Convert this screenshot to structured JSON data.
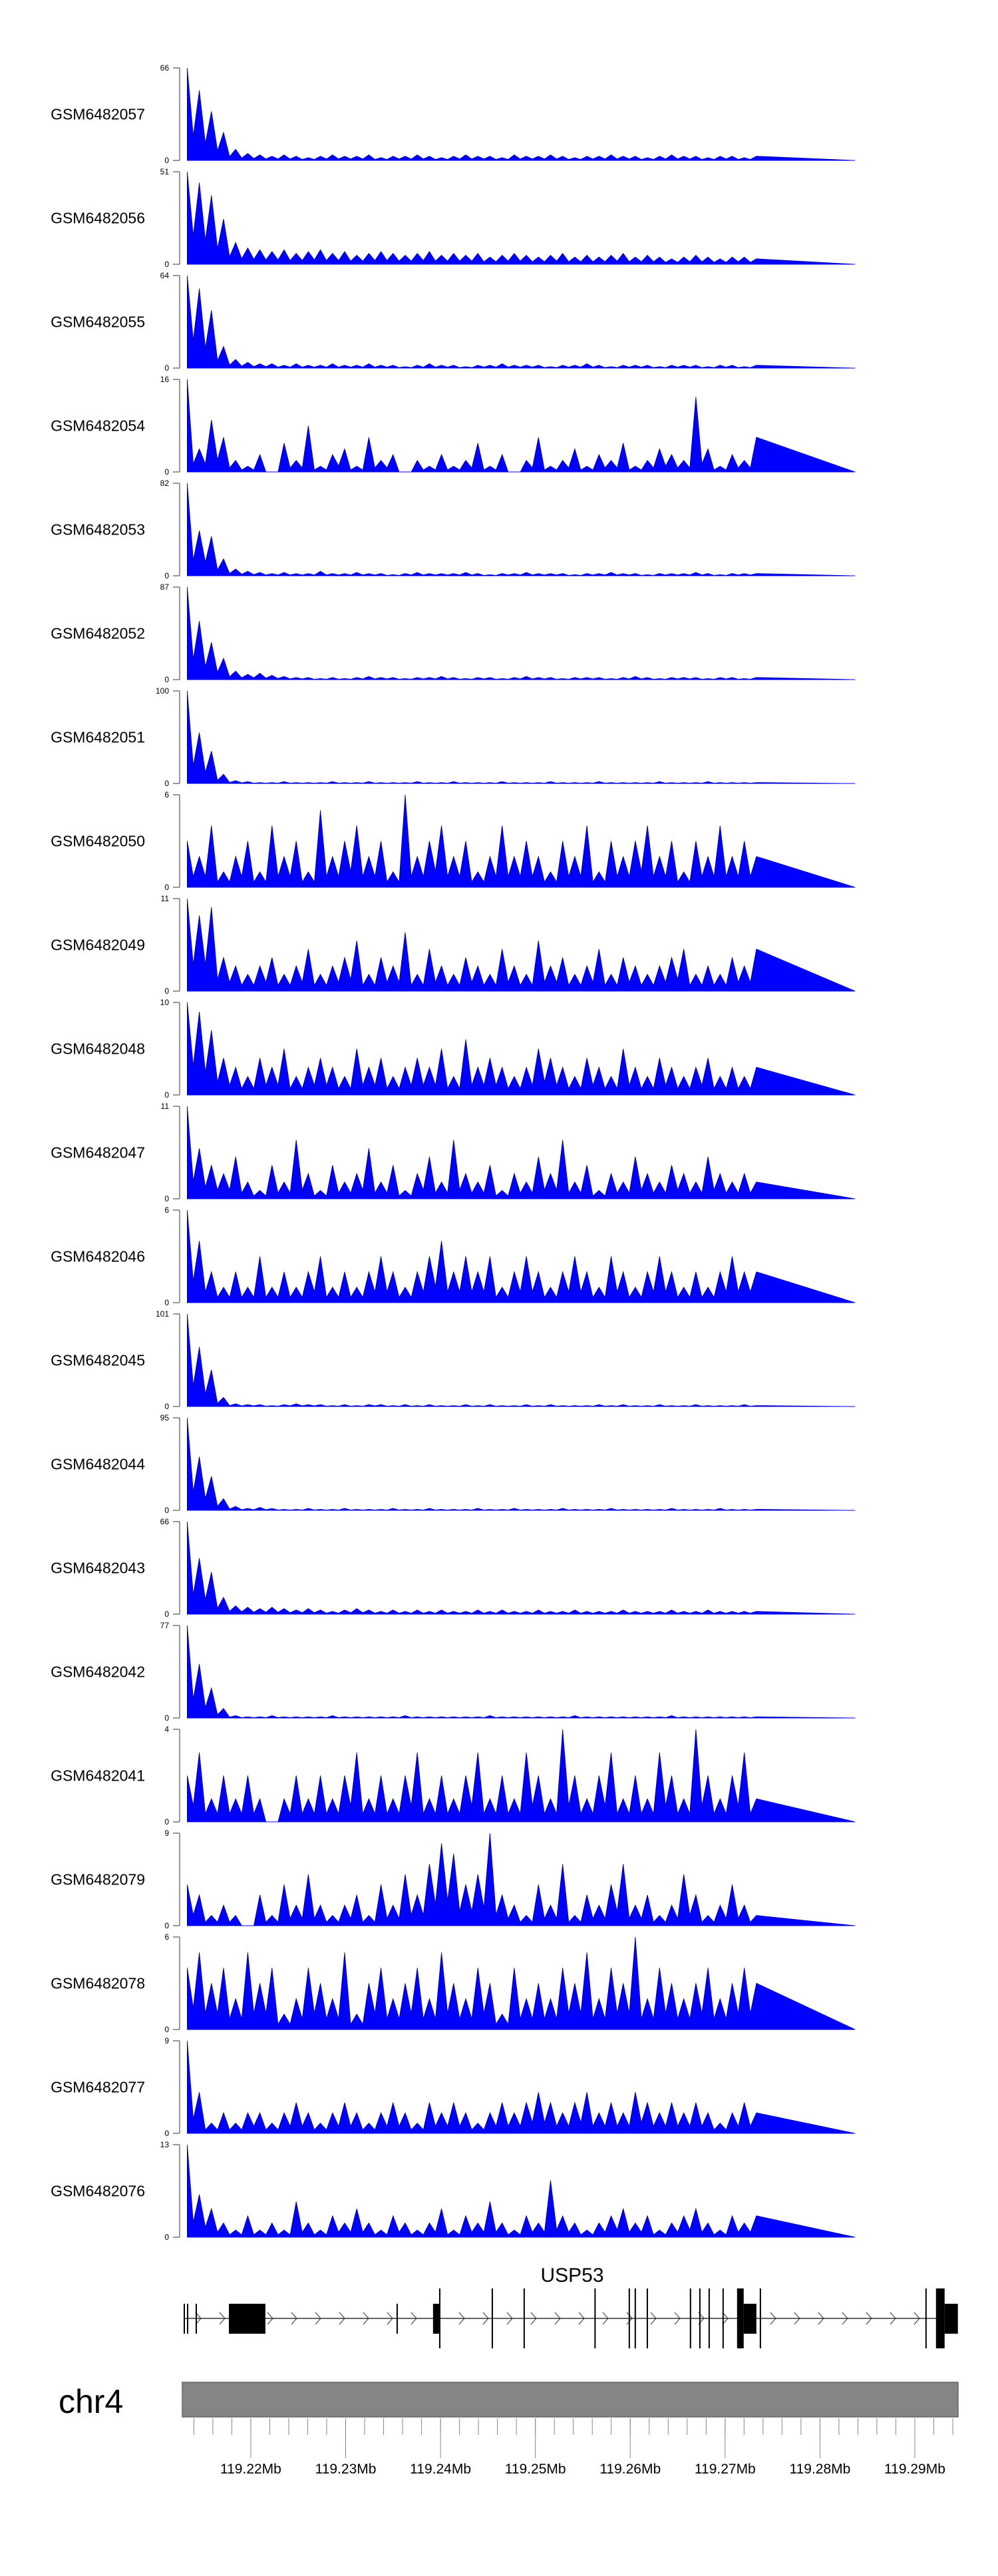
{
  "chart_data": {
    "type": "area",
    "title": "",
    "chromosome": "chr4",
    "xlim_mb": [
      119.21278,
      119.29456
    ],
    "data_start_mb": 119.2133,
    "data_end_mb": 119.2733,
    "taper_end_mb": 119.2837,
    "fill_color": "#0000ff",
    "xticks": {
      "major": [
        119.22,
        119.23,
        119.24,
        119.25,
        119.26,
        119.27,
        119.28,
        119.29
      ],
      "labels": [
        "119.22Mb",
        "119.23Mb",
        "119.24Mb",
        "119.25Mb",
        "119.26Mb",
        "119.27Mb",
        "119.28Mb",
        "119.29Mb"
      ],
      "minor_start": 119.214,
      "minor_end": 119.294,
      "minor_step": 0.002
    },
    "gene": {
      "name": "USP53",
      "strand": "+",
      "start": 119.21292,
      "end": 119.29454,
      "exons": [
        {
          "start": 119.21292,
          "end": 119.21296,
          "kind": "mid"
        },
        {
          "start": 119.21327,
          "end": 119.21331,
          "kind": "mid"
        },
        {
          "start": 119.21418,
          "end": 119.21422,
          "kind": "mid"
        },
        {
          "start": 119.21769,
          "end": 119.22154,
          "kind": "mid"
        },
        {
          "start": 119.23536,
          "end": 119.2354,
          "kind": "mid"
        },
        {
          "start": 119.23921,
          "end": 119.23985,
          "kind": "mid"
        },
        {
          "start": 119.23985,
          "end": 119.2399,
          "kind": "tall"
        },
        {
          "start": 119.24539,
          "end": 119.24543,
          "kind": "tall"
        },
        {
          "start": 119.24875,
          "end": 119.24879,
          "kind": "tall"
        },
        {
          "start": 119.25622,
          "end": 119.2563,
          "kind": "tall"
        },
        {
          "start": 119.25983,
          "end": 119.25987,
          "kind": "tall"
        },
        {
          "start": 119.26046,
          "end": 119.2605,
          "kind": "tall"
        },
        {
          "start": 119.26173,
          "end": 119.26177,
          "kind": "tall"
        },
        {
          "start": 119.26628,
          "end": 119.26632,
          "kind": "tall"
        },
        {
          "start": 119.26727,
          "end": 119.26731,
          "kind": "tall"
        },
        {
          "start": 119.26825,
          "end": 119.26829,
          "kind": "tall"
        },
        {
          "start": 119.26972,
          "end": 119.26976,
          "kind": "tall"
        },
        {
          "start": 119.27126,
          "end": 119.27196,
          "kind": "tall"
        },
        {
          "start": 119.27196,
          "end": 119.2733,
          "kind": "mid"
        },
        {
          "start": 119.27365,
          "end": 119.27369,
          "kind": "tall"
        },
        {
          "start": 119.29111,
          "end": 119.29115,
          "kind": "tall"
        },
        {
          "start": 119.29223,
          "end": 119.29314,
          "kind": "tall"
        },
        {
          "start": 119.29314,
          "end": 119.29454,
          "kind": "mid"
        }
      ]
    },
    "tracks": [
      {
        "name": "GSM6482057",
        "ymax": 66,
        "values": [
          66,
          50,
          35,
          20,
          8,
          5,
          4,
          3,
          4,
          3,
          2,
          3,
          4,
          3,
          3,
          4,
          2,
          3,
          3,
          4,
          3,
          2,
          3,
          4,
          3,
          3,
          2,
          4,
          3,
          3,
          4,
          3,
          2,
          3,
          3,
          4,
          3,
          3,
          2,
          3,
          4,
          3,
          3,
          2,
          3,
          3,
          2,
          3
        ]
      },
      {
        "name": "GSM6482056",
        "ymax": 51,
        "values": [
          51,
          45,
          38,
          25,
          12,
          9,
          8,
          7,
          8,
          6,
          7,
          8,
          6,
          7,
          5,
          6,
          7,
          6,
          5,
          6,
          7,
          5,
          6,
          5,
          6,
          4,
          5,
          6,
          5,
          4,
          5,
          6,
          4,
          5,
          4,
          5,
          6,
          4,
          5,
          4,
          3,
          4,
          5,
          4,
          3,
          4,
          4,
          3
        ]
      },
      {
        "name": "GSM6482055",
        "ymax": 64,
        "values": [
          64,
          55,
          40,
          15,
          6,
          4,
          3,
          3,
          2,
          3,
          2,
          2,
          3,
          2,
          2,
          3,
          2,
          2,
          1,
          2,
          3,
          2,
          2,
          1,
          2,
          2,
          3,
          2,
          2,
          2,
          1,
          2,
          2,
          3,
          2,
          1,
          2,
          2,
          2,
          1,
          2,
          2,
          2,
          1,
          2,
          2,
          1,
          2
        ]
      },
      {
        "name": "GSM6482054",
        "ymax": 16,
        "values": [
          16,
          4,
          9,
          6,
          2,
          1,
          3,
          0,
          5,
          2,
          8,
          1,
          3,
          4,
          1,
          6,
          2,
          3,
          0,
          2,
          1,
          3,
          1,
          2,
          5,
          1,
          3,
          0,
          2,
          6,
          1,
          2,
          4,
          1,
          3,
          2,
          5,
          1,
          2,
          4,
          3,
          2,
          13,
          4,
          1,
          3,
          2,
          6
        ]
      },
      {
        "name": "GSM6482053",
        "ymax": 82,
        "values": [
          82,
          40,
          35,
          15,
          6,
          4,
          3,
          2,
          3,
          2,
          2,
          4,
          2,
          2,
          3,
          2,
          2,
          1,
          2,
          3,
          2,
          2,
          2,
          3,
          2,
          1,
          2,
          2,
          3,
          2,
          2,
          2,
          1,
          2,
          2,
          3,
          2,
          2,
          1,
          2,
          2,
          2,
          3,
          2,
          1,
          2,
          2,
          2
        ]
      },
      {
        "name": "GSM6482052",
        "ymax": 87,
        "values": [
          87,
          55,
          35,
          20,
          8,
          5,
          6,
          4,
          3,
          2,
          2,
          1,
          2,
          1,
          2,
          3,
          2,
          2,
          1,
          2,
          2,
          3,
          2,
          1,
          2,
          2,
          1,
          2,
          3,
          2,
          2,
          1,
          2,
          2,
          2,
          1,
          2,
          3,
          2,
          1,
          2,
          2,
          2,
          1,
          2,
          2,
          1,
          2
        ]
      },
      {
        "name": "GSM6482051",
        "ymax": 100,
        "values": [
          100,
          55,
          35,
          10,
          3,
          2,
          1,
          1,
          2,
          1,
          1,
          1,
          2,
          1,
          1,
          2,
          1,
          1,
          1,
          2,
          1,
          1,
          2,
          1,
          1,
          1,
          2,
          1,
          1,
          1,
          2,
          1,
          1,
          1,
          2,
          1,
          1,
          1,
          1,
          2,
          1,
          1,
          1,
          2,
          1,
          1,
          1,
          1
        ]
      },
      {
        "name": "GSM6482050",
        "ymax": 6,
        "values": [
          3,
          2,
          4,
          1,
          2,
          3,
          1,
          4,
          2,
          3,
          1,
          5,
          2,
          3,
          4,
          2,
          3,
          1,
          6,
          2,
          3,
          4,
          2,
          3,
          1,
          2,
          4,
          2,
          3,
          2,
          1,
          3,
          2,
          4,
          1,
          3,
          2,
          3,
          4,
          2,
          3,
          1,
          3,
          2,
          4,
          2,
          3,
          2
        ]
      },
      {
        "name": "GSM6482049",
        "ymax": 11,
        "values": [
          11,
          9,
          10,
          4,
          3,
          2,
          3,
          4,
          2,
          3,
          5,
          2,
          3,
          4,
          6,
          2,
          4,
          3,
          7,
          2,
          5,
          3,
          2,
          4,
          3,
          2,
          5,
          3,
          2,
          6,
          3,
          4,
          2,
          3,
          5,
          2,
          4,
          3,
          2,
          3,
          4,
          5,
          2,
          3,
          2,
          4,
          3,
          5
        ]
      },
      {
        "name": "GSM6482048",
        "ymax": 10,
        "values": [
          10,
          9,
          7,
          4,
          3,
          2,
          4,
          3,
          5,
          2,
          3,
          4,
          3,
          2,
          5,
          3,
          4,
          2,
          3,
          4,
          3,
          5,
          2,
          6,
          3,
          4,
          3,
          2,
          3,
          5,
          4,
          3,
          2,
          4,
          3,
          2,
          5,
          3,
          2,
          4,
          3,
          2,
          3,
          4,
          2,
          3,
          2,
          3
        ]
      },
      {
        "name": "GSM6482047",
        "ymax": 11,
        "values": [
          11,
          6,
          4,
          3,
          5,
          2,
          1,
          4,
          2,
          7,
          3,
          1,
          4,
          2,
          3,
          6,
          2,
          4,
          1,
          3,
          5,
          2,
          7,
          3,
          2,
          4,
          1,
          3,
          2,
          5,
          3,
          7,
          2,
          4,
          1,
          3,
          2,
          5,
          3,
          2,
          4,
          3,
          2,
          5,
          3,
          2,
          3,
          2
        ]
      },
      {
        "name": "GSM6482046",
        "ymax": 6,
        "values": [
          6,
          4,
          2,
          1,
          2,
          1,
          3,
          1,
          2,
          1,
          2,
          3,
          1,
          2,
          1,
          2,
          3,
          2,
          1,
          2,
          3,
          4,
          2,
          3,
          2,
          3,
          1,
          2,
          3,
          2,
          1,
          2,
          3,
          2,
          1,
          3,
          2,
          1,
          2,
          3,
          2,
          1,
          2,
          1,
          2,
          3,
          2,
          2
        ]
      },
      {
        "name": "GSM6482045",
        "ymax": 101,
        "values": [
          101,
          65,
          40,
          10,
          3,
          2,
          2,
          1,
          2,
          3,
          2,
          2,
          1,
          2,
          1,
          2,
          2,
          1,
          2,
          1,
          2,
          1,
          1,
          2,
          1,
          2,
          1,
          1,
          2,
          1,
          2,
          1,
          1,
          1,
          2,
          1,
          2,
          1,
          1,
          2,
          1,
          1,
          2,
          1,
          1,
          1,
          2,
          1
        ]
      },
      {
        "name": "GSM6482044",
        "ymax": 95,
        "values": [
          95,
          55,
          35,
          12,
          4,
          2,
          3,
          2,
          1,
          1,
          2,
          1,
          1,
          2,
          1,
          1,
          1,
          2,
          1,
          1,
          2,
          1,
          1,
          1,
          2,
          1,
          1,
          2,
          1,
          1,
          1,
          2,
          1,
          1,
          1,
          2,
          1,
          1,
          1,
          1,
          2,
          1,
          1,
          1,
          2,
          1,
          1,
          1
        ]
      },
      {
        "name": "GSM6482043",
        "ymax": 66,
        "values": [
          66,
          40,
          30,
          12,
          6,
          5,
          4,
          5,
          4,
          3,
          4,
          3,
          2,
          3,
          4,
          3,
          2,
          3,
          2,
          3,
          2,
          3,
          2,
          2,
          3,
          2,
          3,
          2,
          2,
          3,
          2,
          2,
          3,
          2,
          2,
          2,
          3,
          2,
          2,
          2,
          3,
          2,
          2,
          3,
          2,
          2,
          2,
          2
        ]
      },
      {
        "name": "GSM6482042",
        "ymax": 77,
        "values": [
          77,
          45,
          25,
          8,
          2,
          1,
          1,
          2,
          1,
          1,
          1,
          1,
          2,
          1,
          1,
          1,
          1,
          1,
          2,
          1,
          1,
          1,
          1,
          1,
          1,
          2,
          1,
          1,
          1,
          1,
          1,
          1,
          2,
          1,
          1,
          1,
          1,
          1,
          1,
          1,
          2,
          1,
          1,
          1,
          1,
          1,
          1,
          1
        ]
      },
      {
        "name": "GSM6482041",
        "ymax": 4,
        "values": [
          2,
          3,
          1,
          2,
          1,
          2,
          1,
          0,
          1,
          2,
          1,
          2,
          1,
          2,
          3,
          1,
          2,
          1,
          2,
          3,
          1,
          2,
          1,
          2,
          3,
          1,
          2,
          1,
          3,
          2,
          1,
          4,
          2,
          1,
          2,
          3,
          1,
          2,
          1,
          3,
          2,
          1,
          4,
          2,
          1,
          2,
          3,
          1
        ]
      },
      {
        "name": "GSM6482079",
        "ymax": 9,
        "values": [
          4,
          3,
          1,
          2,
          1,
          0,
          3,
          1,
          4,
          2,
          5,
          2,
          1,
          2,
          3,
          1,
          4,
          2,
          5,
          3,
          6,
          8,
          7,
          4,
          5,
          9,
          3,
          2,
          1,
          4,
          2,
          6,
          1,
          3,
          2,
          4,
          6,
          2,
          3,
          1,
          2,
          5,
          3,
          1,
          2,
          4,
          2,
          1
        ]
      },
      {
        "name": "GSM6482078",
        "ymax": 6,
        "values": [
          4,
          5,
          3,
          4,
          2,
          5,
          3,
          4,
          1,
          2,
          4,
          3,
          2,
          5,
          1,
          3,
          4,
          2,
          3,
          4,
          2,
          5,
          3,
          2,
          4,
          3,
          1,
          4,
          2,
          3,
          2,
          4,
          3,
          5,
          2,
          4,
          3,
          6,
          2,
          4,
          3,
          2,
          3,
          4,
          2,
          3,
          4,
          3
        ]
      },
      {
        "name": "GSM6482077",
        "ymax": 9,
        "values": [
          9,
          4,
          1,
          2,
          1,
          2,
          2,
          1,
          2,
          3,
          2,
          1,
          2,
          3,
          2,
          1,
          2,
          3,
          2,
          1,
          3,
          2,
          3,
          2,
          1,
          2,
          3,
          2,
          3,
          4,
          3,
          2,
          3,
          4,
          2,
          3,
          2,
          4,
          3,
          2,
          3,
          2,
          3,
          2,
          1,
          2,
          3,
          2
        ]
      },
      {
        "name": "GSM6482076",
        "ymax": 13,
        "values": [
          13,
          6,
          4,
          2,
          1,
          3,
          1,
          2,
          1,
          5,
          2,
          1,
          3,
          2,
          4,
          2,
          1,
          3,
          2,
          1,
          2,
          4,
          1,
          3,
          2,
          5,
          2,
          1,
          3,
          2,
          8,
          3,
          2,
          1,
          2,
          3,
          4,
          2,
          3,
          1,
          2,
          3,
          4,
          2,
          1,
          3,
          2,
          3
        ]
      }
    ]
  }
}
